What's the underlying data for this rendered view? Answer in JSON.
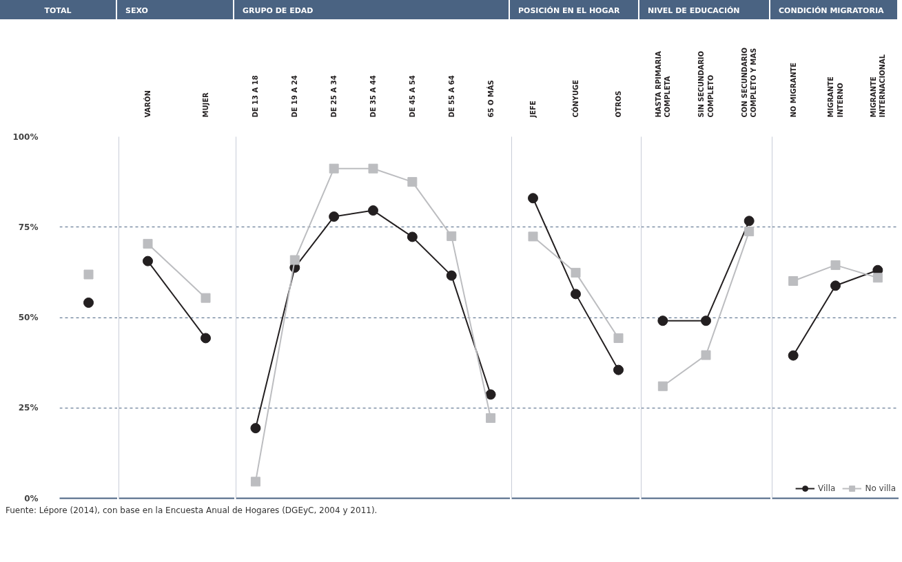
{
  "chart_data": [
    {
      "type": "line",
      "title": "TOTAL",
      "categories": [
        null
      ],
      "series": [
        {
          "color": "#231f20",
          "marker": "circle",
          "values": [
            54.1
          ]
        },
        {
          "color": "#bcbdc0",
          "marker": "square",
          "values": [
            61.9
          ]
        }
      ],
      "ylim": [
        0,
        100
      ],
      "yticks": [
        {
          "value": 0,
          "label": "0%"
        },
        {
          "value": 25,
          "label": "25%"
        },
        {
          "value": 50,
          "label": "50%"
        },
        {
          "value": 75,
          "label": "75%"
        },
        {
          "value": 100,
          "label": "100%"
        }
      ],
      "grid": "y",
      "tick_labels": "y",
      "annotations": [
        "Fuente: Lépore (2014), con base en la Encuesta Anual de Hogares (DGEyC, 2004 y 2011)."
      ]
    },
    {
      "type": "line",
      "title": "SEXO",
      "categories": [
        "VARÓN",
        "MUJER"
      ],
      "series": [
        {
          "color": "#231f20",
          "marker": "circle",
          "values": [
            65.6,
            44.3
          ]
        },
        {
          "color": "#bcbdc0",
          "marker": "square",
          "values": [
            70.4,
            55.4
          ]
        }
      ],
      "ylim": [
        0,
        100
      ],
      "yticks": [
        0,
        25,
        50,
        75,
        100
      ],
      "grid": "y",
      "tick_labels": "x"
    },
    {
      "type": "line",
      "title": "GRUPO DE EDAD",
      "categories": [
        "DE 13 A 18",
        "DE 19 A 24",
        "DE 25 A 34",
        "DE 35 A 44",
        "DE 45 A 54",
        "DE 55 A 64",
        "65 O MÁS"
      ],
      "series": [
        {
          "color": "#231f20",
          "marker": "circle",
          "values": [
            19.4,
            63.8,
            77.9,
            79.6,
            72.3,
            61.6,
            28.7
          ]
        },
        {
          "color": "#bcbdc0",
          "marker": "square",
          "values": [
            4.6,
            65.9,
            91.2,
            91.2,
            87.5,
            72.5,
            22.2
          ]
        }
      ],
      "ylim": [
        0,
        100
      ],
      "yticks": [
        0,
        25,
        50,
        75,
        100
      ],
      "grid": "y",
      "tick_labels": "x"
    },
    {
      "type": "line",
      "title": "POSICIÓN EN EL HOGAR",
      "categories": [
        "JEFE",
        "CÓNYUGE",
        "OTROS"
      ],
      "series": [
        {
          "color": "#231f20",
          "marker": "circle",
          "values": [
            83.0,
            56.5,
            35.5
          ]
        },
        {
          "color": "#bcbdc0",
          "marker": "square",
          "values": [
            72.4,
            62.4,
            44.3
          ]
        }
      ],
      "ylim": [
        0,
        100
      ],
      "yticks": [
        0,
        25,
        50,
        75,
        100
      ],
      "grid": "y",
      "tick_labels": "x"
    },
    {
      "type": "line",
      "title": "NIVEL DE EDUCACIÓN",
      "categories": [
        "HASTA RPIMARIA\nCOMPLETA",
        "SIN SECUNDARIO\nCOMPLETO",
        "CON SECUNDARIO\nCOMPLETO Y MAS"
      ],
      "series": [
        {
          "color": "#231f20",
          "marker": "circle",
          "values": [
            49.1,
            49.1,
            76.7
          ]
        },
        {
          "color": "#bcbdc0",
          "marker": "square",
          "values": [
            31.0,
            39.6,
            73.8
          ]
        }
      ],
      "ylim": [
        0,
        100
      ],
      "yticks": [
        0,
        25,
        50,
        75,
        100
      ],
      "grid": "y",
      "tick_labels": "x"
    },
    {
      "type": "line",
      "title": "CONDICIÓN MIGRATORIA",
      "categories": [
        "NO MIGRANTE",
        "MIGRANTE\nINTERNO",
        "MIGRANTE\nINTERNACIONAL"
      ],
      "series": [
        {
          "name": "Villa",
          "color": "#231f20",
          "marker": "circle",
          "values": [
            39.5,
            58.8,
            63.1
          ]
        },
        {
          "name": "No villa",
          "color": "#bcbdc0",
          "marker": "square",
          "values": [
            60.1,
            64.5,
            61.0
          ]
        }
      ],
      "ylim": [
        0,
        100
      ],
      "yticks": [
        0,
        25,
        50,
        75,
        100
      ],
      "grid": "y",
      "tick_labels": "x",
      "legend": "bottom right"
    }
  ]
}
